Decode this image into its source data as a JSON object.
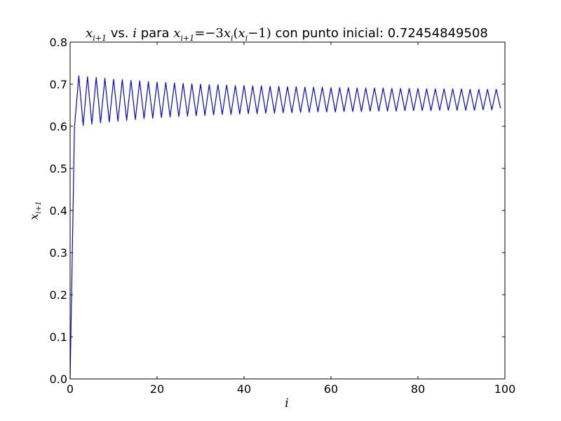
{
  "chart_data": {
    "type": "line",
    "title": {
      "text_prefix_var": "x",
      "text_prefix_sub": "i+1",
      "vs": " vs. ",
      "i_var": "i",
      "para": " para ",
      "formula_lhs_var": "x",
      "formula_lhs_sub": "i+1",
      "formula_eq": "=−3",
      "formula_x1": "x",
      "formula_x1_sub": "i",
      "formula_paren_open": "(",
      "formula_x2": "x",
      "formula_x2_sub": "i",
      "formula_minus_one": "−1)",
      "suffix": " con punto inicial: 0.72454849508"
    },
    "xlabel": "i",
    "ylabel_var": "x",
    "ylabel_sub": "i+1",
    "xlim": [
      0,
      100
    ],
    "ylim": [
      0.0,
      0.8
    ],
    "x_ticks": [
      0,
      20,
      40,
      60,
      80,
      100
    ],
    "x_tick_labels": [
      "0",
      "20",
      "40",
      "60",
      "80",
      "100"
    ],
    "y_ticks": [
      0.0,
      0.1,
      0.2,
      0.3,
      0.4,
      0.5,
      0.6,
      0.7,
      0.8
    ],
    "y_tick_labels": [
      "0.0",
      "0.1",
      "0.2",
      "0.3",
      "0.4",
      "0.5",
      "0.6",
      "0.7",
      "0.8"
    ],
    "grid": false,
    "series": [
      {
        "color": "#0000ff",
        "x": [
          0,
          1,
          2,
          3,
          4,
          5,
          6,
          7,
          8,
          9,
          10,
          11,
          12,
          13,
          14,
          15,
          16,
          17,
          18,
          19,
          20,
          21,
          22,
          23,
          24,
          25,
          26,
          27,
          28,
          29,
          30,
          31,
          32,
          33,
          34,
          35,
          36,
          37,
          38,
          39,
          40,
          41,
          42,
          43,
          44,
          45,
          46,
          47,
          48,
          49,
          50,
          51,
          52,
          53,
          54,
          55,
          56,
          57,
          58,
          59,
          60,
          61,
          62,
          63,
          64,
          65,
          66,
          67,
          68,
          69,
          70,
          71,
          72,
          73,
          74,
          75,
          76,
          77,
          78,
          79,
          80,
          81,
          82,
          83,
          84,
          85,
          86,
          87,
          88,
          89,
          90,
          91,
          92,
          93,
          94,
          95,
          96,
          97,
          98,
          99
        ],
        "y": [
          0.0,
          0.598,
          0.72,
          0.602,
          0.718,
          0.605,
          0.716,
          0.608,
          0.714,
          0.61,
          0.712,
          0.612,
          0.711,
          0.614,
          0.709,
          0.616,
          0.708,
          0.618,
          0.706,
          0.619,
          0.705,
          0.621,
          0.704,
          0.622,
          0.703,
          0.623,
          0.702,
          0.624,
          0.701,
          0.625,
          0.7,
          0.626,
          0.699,
          0.627,
          0.699,
          0.628,
          0.698,
          0.628,
          0.697,
          0.629,
          0.697,
          0.63,
          0.696,
          0.63,
          0.696,
          0.631,
          0.695,
          0.631,
          0.695,
          0.632,
          0.694,
          0.632,
          0.694,
          0.633,
          0.693,
          0.633,
          0.693,
          0.634,
          0.693,
          0.634,
          0.692,
          0.634,
          0.692,
          0.635,
          0.692,
          0.635,
          0.691,
          0.635,
          0.691,
          0.636,
          0.691,
          0.636,
          0.691,
          0.636,
          0.69,
          0.636,
          0.69,
          0.637,
          0.69,
          0.637,
          0.69,
          0.637,
          0.689,
          0.637,
          0.689,
          0.638,
          0.689,
          0.638,
          0.689,
          0.638,
          0.689,
          0.638,
          0.688,
          0.638,
          0.688,
          0.639,
          0.688,
          0.639,
          0.688,
          0.643
        ]
      }
    ]
  }
}
